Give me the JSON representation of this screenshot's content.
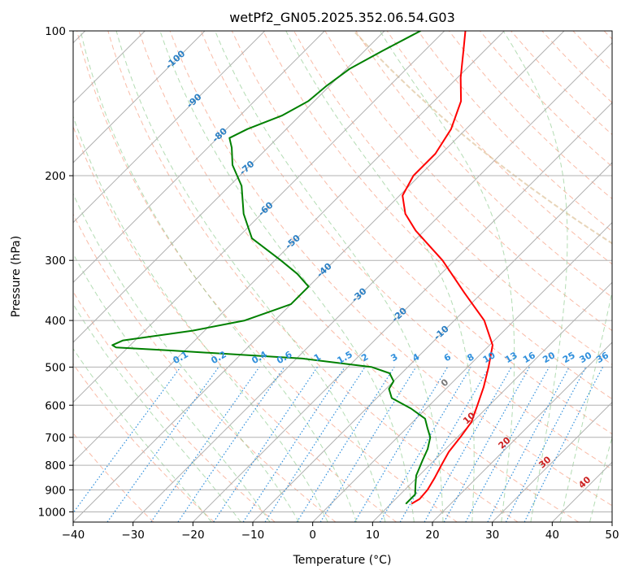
{
  "title": "wetPf2_GN05.2025.352.06.54.G03",
  "chart_data": {
    "type": "skew-t",
    "title": "wetPf2_GN05.2025.352.06.54.G03",
    "xlabel": "Temperature (°C)",
    "ylabel": "Pressure (hPa)",
    "xlim": [
      -40,
      50
    ],
    "ylim": [
      1050,
      100
    ],
    "y_scale": "log",
    "x_ticks": [
      -40,
      -30,
      -20,
      -10,
      0,
      10,
      20,
      30,
      40,
      50
    ],
    "y_ticks": [
      100,
      200,
      300,
      400,
      500,
      600,
      700,
      800,
      900,
      1000
    ],
    "grid": true,
    "isotherm_labels": [
      "-100",
      "-90",
      "-80",
      "-70",
      "-60",
      "-50",
      "-40",
      "-30",
      "-20",
      "-10"
    ],
    "mixing_ratio_labels": [
      "0.1",
      "0.2",
      "0.4",
      "0.6",
      "1",
      "1.5",
      "2",
      "3",
      "4",
      "6",
      "8",
      "10",
      "13",
      "16",
      "20",
      "25",
      "30",
      "36"
    ],
    "isotherm_labels_lower": [
      "0",
      "10",
      "20",
      "30",
      "40"
    ],
    "series": [
      {
        "color": "#ff0000",
        "values": [
          {
            "p": 960,
            "t": 13.5
          },
          {
            "p": 940,
            "t": 14.0
          },
          {
            "p": 900,
            "t": 13.8
          },
          {
            "p": 850,
            "t": 13.0
          },
          {
            "p": 800,
            "t": 12.0
          },
          {
            "p": 750,
            "t": 11.0
          },
          {
            "p": 700,
            "t": 10.5
          },
          {
            "p": 650,
            "t": 9.8
          },
          {
            "p": 600,
            "t": 8.0
          },
          {
            "p": 550,
            "t": 6.0
          },
          {
            "p": 500,
            "t": 3.5
          },
          {
            "p": 450,
            "t": 0.5
          },
          {
            "p": 400,
            "t": -5.0
          },
          {
            "p": 350,
            "t": -13.0
          },
          {
            "p": 300,
            "t": -22.0
          },
          {
            "p": 260,
            "t": -31.5
          },
          {
            "p": 240,
            "t": -36.0
          },
          {
            "p": 220,
            "t": -39.5
          },
          {
            "p": 200,
            "t": -41.0
          },
          {
            "p": 180,
            "t": -41.0
          },
          {
            "p": 160,
            "t": -42.5
          },
          {
            "p": 140,
            "t": -45.5
          },
          {
            "p": 125,
            "t": -49.5
          },
          {
            "p": 110,
            "t": -53.5
          },
          {
            "p": 100,
            "t": -56.5
          }
        ]
      },
      {
        "color": "#008000",
        "values": [
          {
            "p": 960,
            "t": 12.5
          },
          {
            "p": 920,
            "t": 12.5
          },
          {
            "p": 880,
            "t": 11.0
          },
          {
            "p": 840,
            "t": 9.5
          },
          {
            "p": 780,
            "t": 8.0
          },
          {
            "p": 740,
            "t": 7.0
          },
          {
            "p": 700,
            "t": 5.5
          },
          {
            "p": 670,
            "t": 3.5
          },
          {
            "p": 640,
            "t": 1.5
          },
          {
            "p": 610,
            "t": -2.5
          },
          {
            "p": 580,
            "t": -7.5
          },
          {
            "p": 555,
            "t": -9.5
          },
          {
            "p": 535,
            "t": -10.0
          },
          {
            "p": 515,
            "t": -12.0
          },
          {
            "p": 500,
            "t": -16.0
          },
          {
            "p": 480,
            "t": -29.0
          },
          {
            "p": 462,
            "t": -52.0
          },
          {
            "p": 455,
            "t": -62.0
          },
          {
            "p": 450,
            "t": -63.0
          },
          {
            "p": 440,
            "t": -62.0
          },
          {
            "p": 420,
            "t": -52.0
          },
          {
            "p": 400,
            "t": -45.0
          },
          {
            "p": 370,
            "t": -40.0
          },
          {
            "p": 340,
            "t": -40.0
          },
          {
            "p": 320,
            "t": -44.0
          },
          {
            "p": 300,
            "t": -49.0
          },
          {
            "p": 270,
            "t": -57.5
          },
          {
            "p": 240,
            "t": -63.0
          },
          {
            "p": 210,
            "t": -68.0
          },
          {
            "p": 190,
            "t": -73.0
          },
          {
            "p": 175,
            "t": -76.0
          },
          {
            "p": 167,
            "t": -78.0
          },
          {
            "p": 160,
            "t": -76.5
          },
          {
            "p": 150,
            "t": -73.0
          },
          {
            "p": 140,
            "t": -71.0
          },
          {
            "p": 130,
            "t": -70.5
          },
          {
            "p": 120,
            "t": -69.5
          },
          {
            "p": 110,
            "t": -67.0
          },
          {
            "p": 100,
            "t": -64.0
          }
        ]
      }
    ]
  }
}
